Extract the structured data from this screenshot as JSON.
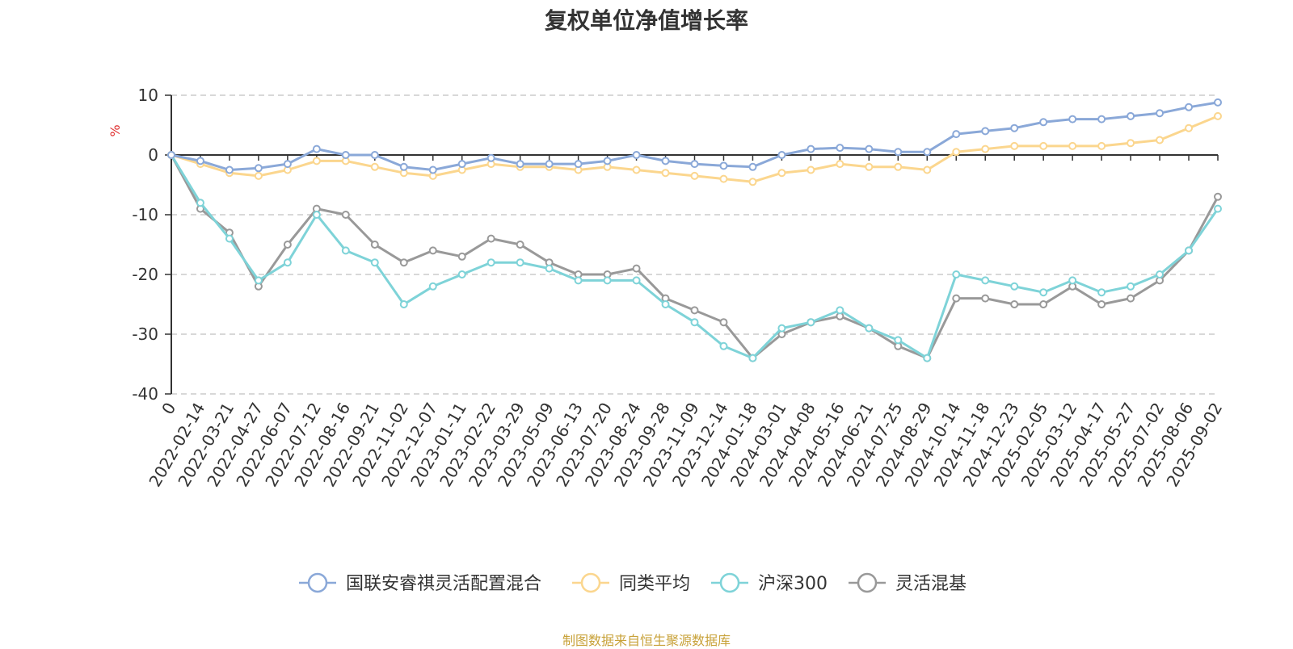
{
  "title": "复权单位净值增长率",
  "source_note": "制图数据来自恒生聚源数据库",
  "colors": {
    "国联安睿祺灵活配置混合": "#8aa8d8",
    "同类平均": "#fbd68e",
    "沪深300": "#7ed3d8",
    "灵活混基": "#999999"
  },
  "chart_data": {
    "type": "line",
    "title": "复权单位净值增长率",
    "ylabel": "%",
    "ylim": [
      -40,
      10
    ],
    "yticks": [
      10,
      0,
      -10,
      -20,
      -30,
      -40
    ],
    "grid": true,
    "legend_position": "bottom",
    "x_tick_labels": [
      "0",
      "2022-02-14",
      "2022-03-21",
      "2022-04-27",
      "2022-06-07",
      "2022-07-12",
      "2022-08-16",
      "2022-09-21",
      "2022-11-02",
      "2022-12-07",
      "2023-01-11",
      "2023-02-22",
      "2023-03-29",
      "2023-05-09",
      "2023-06-13",
      "2023-07-20",
      "2023-08-24",
      "2023-09-28",
      "2023-11-09",
      "2023-12-14",
      "2024-01-18",
      "2024-03-01",
      "2024-04-08",
      "2024-05-16",
      "2024-06-21",
      "2024-07-25",
      "2024-08-29",
      "2024-10-14",
      "2024-11-18",
      "2024-12-23",
      "2025-02-05",
      "2025-03-12",
      "2025-04-17",
      "2025-05-27",
      "2025-07-02",
      "2025-08-06",
      "2025-09-02"
    ],
    "series": [
      {
        "name": "国联安睿祺灵活配置混合",
        "values": [
          0,
          -1,
          -2.5,
          -2.2,
          -1.5,
          1,
          0,
          0,
          -2,
          -2.5,
          -1.5,
          -0.5,
          -1.5,
          -1.5,
          -1.5,
          -1,
          0,
          -1,
          -1.5,
          -1.8,
          -2,
          0,
          1,
          1.2,
          1,
          0.5,
          0.5,
          3.5,
          4,
          4.5,
          5.5,
          6,
          6,
          6.5,
          7,
          8,
          8.8
        ]
      },
      {
        "name": "同类平均",
        "values": [
          0,
          -1.5,
          -3,
          -3.5,
          -2.5,
          -1,
          -1,
          -2,
          -3,
          -3.5,
          -2.5,
          -1.5,
          -2,
          -2,
          -2.5,
          -2,
          -2.5,
          -3,
          -3.5,
          -4,
          -4.5,
          -3,
          -2.5,
          -1.5,
          -2,
          -2,
          -2.5,
          0.5,
          1,
          1.5,
          1.5,
          1.5,
          1.5,
          2,
          2.5,
          4.5,
          6.5
        ]
      },
      {
        "name": "沪深300",
        "values": [
          0,
          -8,
          -14,
          -21,
          -18,
          -10,
          -16,
          -18,
          -25,
          -22,
          -20,
          -18,
          -18,
          -19,
          -21,
          -21,
          -21,
          -25,
          -28,
          -32,
          -34,
          -29,
          -28,
          -26,
          -29,
          -31,
          -34,
          -20,
          -21,
          -22,
          -23,
          -21,
          -23,
          -22,
          -20,
          -16,
          -9
        ]
      },
      {
        "name": "灵活混基",
        "values": [
          0,
          -9,
          -13,
          -22,
          -15,
          -9,
          -10,
          -15,
          -18,
          -16,
          -17,
          -14,
          -15,
          -18,
          -20,
          -20,
          -19,
          -24,
          -26,
          -28,
          -34,
          -30,
          -28,
          -27,
          -29,
          -32,
          -34,
          -24,
          -24,
          -25,
          -25,
          -22,
          -25,
          -24,
          -21,
          -16,
          -7
        ]
      }
    ]
  }
}
